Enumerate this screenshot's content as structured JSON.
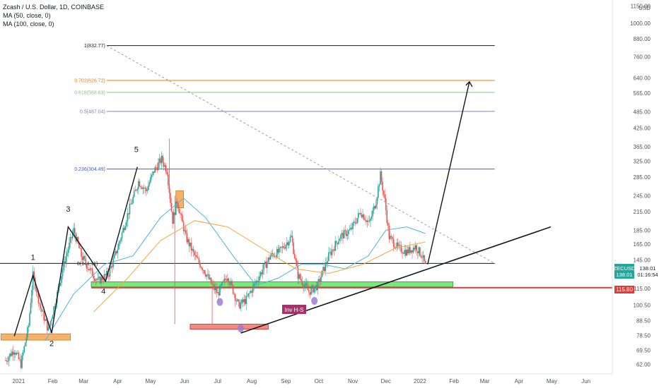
{
  "legend": {
    "title": "Zcash / U.S. Dollar, 1D, COINBASE",
    "ma50": "MA (50, close, 0)",
    "ma100": "MA (100, close, 0)"
  },
  "colors": {
    "up": "#26a69a",
    "down": "#ef5350",
    "ma50": "#4fb3d9",
    "ma100": "#f7a53b",
    "fib_1": "#131722",
    "fib_0702": "#f57c00",
    "fib_0618": "#81c784",
    "fib_05": "#7e80c4",
    "fib_0236": "#2962ff",
    "fib_base": "#131722",
    "support_zone": "#7be87b",
    "demand_zone": "#f6b26b",
    "low_zone": "#f28b82",
    "red_line": "#e53935",
    "trendline": "#131722",
    "triangle_line": "#9e9e9e",
    "purple_dot": "#9a7fd1",
    "label_bg": "#a3336b"
  },
  "price_axis": {
    "currency": "USD",
    "ticks": [
      "1150.00",
      "1000.00",
      "880.00",
      "760.00",
      "640.00",
      "565.00",
      "485.00",
      "425.00",
      "365.00",
      "325.00",
      "285.00",
      "245.00",
      "215.00",
      "185.00",
      "165.00",
      "145.00",
      "115.00",
      "100.50",
      "88.50",
      "78.50",
      "69.50",
      "62.00"
    ],
    "current_symbol": "ZECUSD",
    "current_price": "138.01",
    "countdown": "01:16:54",
    "red_level": "115.80"
  },
  "time_axis": {
    "labels": [
      "2021",
      "Feb",
      "Mar",
      "Apr",
      "May",
      "Jun",
      "Jul",
      "Aug",
      "Sep",
      "Oct",
      "Nov",
      "Dec",
      "2022",
      "Feb",
      "Mar",
      "Apr",
      "May",
      "Jun"
    ]
  },
  "fib_levels": [
    {
      "label": "1(832.77)",
      "ratio": "1",
      "price": 832.77
    },
    {
      "label": "0.702(626.72)",
      "ratio": "0.702",
      "price": 626.72
    },
    {
      "label": "0.618(568.63)",
      "ratio": "0.618",
      "price": 568.63
    },
    {
      "label": "0.5(487.04)",
      "ratio": "0.5",
      "price": 487.04
    },
    {
      "label": "0.236(304.49)",
      "ratio": "0.236",
      "price": 304.49
    },
    {
      "label": "0(141.11)",
      "ratio": "0",
      "price": 141.11
    }
  ],
  "wave_labels": [
    "1",
    "2",
    "3",
    "4",
    "5"
  ],
  "annotation": "Inv H-S",
  "chart_data": {
    "type": "candlestick",
    "title": "Zcash / U.S. Dollar, 1D, COINBASE",
    "y_scale": "log",
    "ylim": [
      58,
      1180
    ],
    "x_range": [
      "2020-12-15",
      "2022-06-25"
    ],
    "series": [
      {
        "name": "MA (50, close, 0)",
        "kind": "line"
      },
      {
        "name": "MA (100, close, 0)",
        "kind": "line"
      }
    ],
    "close_path": [
      {
        "date": "2020-12-20",
        "close": 64
      },
      {
        "date": "2020-12-28",
        "close": 70
      },
      {
        "date": "2021-01-03",
        "close": 62
      },
      {
        "date": "2021-01-10",
        "close": 85
      },
      {
        "date": "2021-01-14",
        "close": 128
      },
      {
        "date": "2021-01-21",
        "close": 98
      },
      {
        "date": "2021-01-28",
        "close": 82
      },
      {
        "date": "2021-02-05",
        "close": 110
      },
      {
        "date": "2021-02-12",
        "close": 145
      },
      {
        "date": "2021-02-20",
        "close": 185
      },
      {
        "date": "2021-02-27",
        "close": 150
      },
      {
        "date": "2021-03-06",
        "close": 135
      },
      {
        "date": "2021-03-14",
        "close": 122
      },
      {
        "date": "2021-03-24",
        "close": 130
      },
      {
        "date": "2021-04-01",
        "close": 160
      },
      {
        "date": "2021-04-10",
        "close": 210
      },
      {
        "date": "2021-04-20",
        "close": 275
      },
      {
        "date": "2021-04-27",
        "close": 255
      },
      {
        "date": "2021-05-04",
        "close": 300
      },
      {
        "date": "2021-05-11",
        "close": 330
      },
      {
        "date": "2021-05-16",
        "close": 300
      },
      {
        "date": "2021-05-21",
        "close": 200
      },
      {
        "date": "2021-05-25",
        "close": 235
      },
      {
        "date": "2021-06-02",
        "close": 175
      },
      {
        "date": "2021-06-10",
        "close": 150
      },
      {
        "date": "2021-06-18",
        "close": 135
      },
      {
        "date": "2021-06-26",
        "close": 118
      },
      {
        "date": "2021-07-01",
        "close": 110
      },
      {
        "date": "2021-07-10",
        "close": 128
      },
      {
        "date": "2021-07-20",
        "close": 100
      },
      {
        "date": "2021-07-27",
        "close": 105
      },
      {
        "date": "2021-08-08",
        "close": 128
      },
      {
        "date": "2021-08-18",
        "close": 150
      },
      {
        "date": "2021-08-26",
        "close": 155
      },
      {
        "date": "2021-09-06",
        "close": 175
      },
      {
        "date": "2021-09-12",
        "close": 128
      },
      {
        "date": "2021-09-22",
        "close": 112
      },
      {
        "date": "2021-09-30",
        "close": 118
      },
      {
        "date": "2021-10-10",
        "close": 150
      },
      {
        "date": "2021-10-20",
        "close": 175
      },
      {
        "date": "2021-10-30",
        "close": 185
      },
      {
        "date": "2021-11-08",
        "close": 215
      },
      {
        "date": "2021-11-16",
        "close": 195
      },
      {
        "date": "2021-11-22",
        "close": 235
      },
      {
        "date": "2021-11-26",
        "close": 290
      },
      {
        "date": "2021-11-30",
        "close": 235
      },
      {
        "date": "2021-12-04",
        "close": 175
      },
      {
        "date": "2021-12-12",
        "close": 160
      },
      {
        "date": "2021-12-20",
        "close": 155
      },
      {
        "date": "2021-12-28",
        "close": 162
      },
      {
        "date": "2022-01-03",
        "close": 150
      },
      {
        "date": "2022-01-06",
        "close": 138.01
      }
    ],
    "ma50_path": [
      {
        "date": "2021-01-25",
        "value": 75
      },
      {
        "date": "2021-02-20",
        "value": 110
      },
      {
        "date": "2021-03-20",
        "value": 140
      },
      {
        "date": "2021-04-15",
        "value": 150
      },
      {
        "date": "2021-05-10",
        "value": 205
      },
      {
        "date": "2021-05-31",
        "value": 240
      },
      {
        "date": "2021-06-20",
        "value": 205
      },
      {
        "date": "2021-07-15",
        "value": 150
      },
      {
        "date": "2021-08-05",
        "value": 118
      },
      {
        "date": "2021-08-25",
        "value": 125
      },
      {
        "date": "2021-09-15",
        "value": 140
      },
      {
        "date": "2021-10-05",
        "value": 140
      },
      {
        "date": "2021-10-25",
        "value": 135
      },
      {
        "date": "2021-11-15",
        "value": 150
      },
      {
        "date": "2021-12-01",
        "value": 185
      },
      {
        "date": "2021-12-20",
        "value": 190
      },
      {
        "date": "2022-01-06",
        "value": 180
      }
    ],
    "ma100_path": [
      {
        "date": "2021-03-10",
        "value": 95
      },
      {
        "date": "2021-04-10",
        "value": 125
      },
      {
        "date": "2021-05-10",
        "value": 170
      },
      {
        "date": "2021-06-10",
        "value": 200
      },
      {
        "date": "2021-07-10",
        "value": 190
      },
      {
        "date": "2021-08-10",
        "value": 160
      },
      {
        "date": "2021-09-10",
        "value": 135
      },
      {
        "date": "2021-10-10",
        "value": 130
      },
      {
        "date": "2021-11-10",
        "value": 140
      },
      {
        "date": "2021-12-10",
        "value": 160
      },
      {
        "date": "2022-01-06",
        "value": 168
      }
    ]
  }
}
